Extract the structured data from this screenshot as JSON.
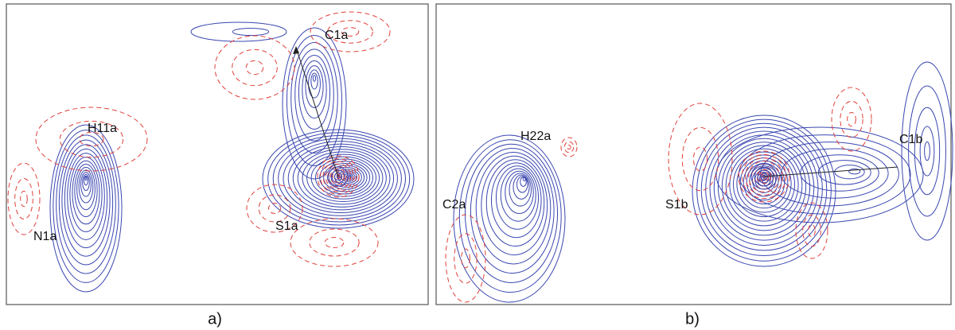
{
  "panels": [
    {
      "caption": "a)",
      "labels": [
        "C1a",
        "H11a",
        "N1a",
        "S1a"
      ]
    },
    {
      "caption": "b)",
      "labels": [
        "H22a",
        "C2a",
        "S1b",
        "C1b"
      ]
    }
  ]
}
